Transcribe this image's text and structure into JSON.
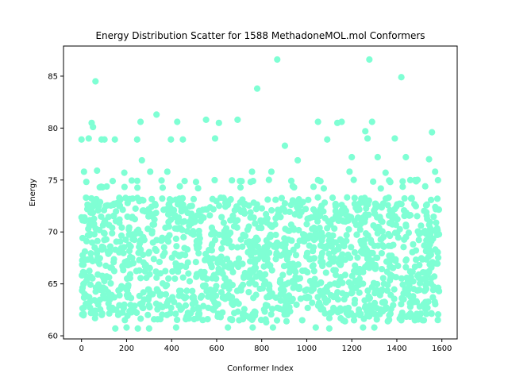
{
  "chart_data": {
    "type": "scatter",
    "title": "Energy Distribution Scatter for 1588 MethadoneMOL.mol Conformers",
    "xlabel": "Conformer Index",
    "ylabel": "Energy",
    "xlim": [
      -80,
      1668
    ],
    "ylim": [
      59.7,
      87.9
    ],
    "x_ticks": [
      0,
      200,
      400,
      600,
      800,
      1000,
      1200,
      1400,
      1600
    ],
    "x_tick_labels": [
      "0",
      "200",
      "400",
      "600",
      "800",
      "1000",
      "1200",
      "1400",
      "1600"
    ],
    "y_ticks": [
      60,
      65,
      70,
      75,
      80,
      85
    ],
    "y_tick_labels": [
      "60",
      "65",
      "70",
      "75",
      "80",
      "85"
    ],
    "grid": false,
    "marker_color": "#7fffd4",
    "n_points": 1588,
    "series": [
      {
        "x": [
          0,
          11,
          20,
          32,
          45,
          51,
          62,
          69,
          81,
          89,
          102,
          148,
          190,
          247,
          262,
          268,
          305,
          333,
          381,
          397,
          425,
          450,
          553,
          593,
          610,
          693,
          757,
          780,
          843,
          869,
          903,
          960,
          1050,
          1091,
          1136,
          1155,
          1190,
          1200,
          1260,
          1270,
          1278,
          1290,
          1315,
          1350,
          1391,
          1420,
          1440,
          1543,
          1556,
          1570
        ],
        "y": [
          78.9,
          75.8,
          73.3,
          79.0,
          80.5,
          80.1,
          84.5,
          75.9,
          74.3,
          78.9,
          78.9,
          78.9,
          75.7,
          78.9,
          80.6,
          76.9,
          75.8,
          81.3,
          75.8,
          78.9,
          80.6,
          78.9,
          80.8,
          79.0,
          80.5,
          80.8,
          75.8,
          83.8,
          75.8,
          86.6,
          78.3,
          76.9,
          80.6,
          78.9,
          80.5,
          80.6,
          75.8,
          77.2,
          79.7,
          79.0,
          86.6,
          80.6,
          77.2,
          75.7,
          79.0,
          84.9,
          77.2,
          77.0,
          79.6,
          75.8
        ]
      },
      {
        "x": [
          0,
          10,
          30,
          60,
          100,
          150,
          200,
          250,
          300,
          350,
          420,
          500,
          560,
          650,
          700,
          760,
          820,
          850,
          910,
          980,
          1040,
          1100,
          1170,
          1210,
          1250,
          1300,
          1360,
          1420,
          1480,
          1520,
          1560,
          1580
        ],
        "y": [
          71.4,
          62.1,
          70.3,
          61.7,
          72.1,
          60.7,
          60.8,
          60.7,
          60.7,
          61.6,
          60.8,
          61.6,
          61.6,
          60.8,
          61.5,
          60.8,
          61.3,
          60.8,
          61.4,
          61.5,
          60.8,
          60.7,
          61.4,
          61.5,
          60.8,
          60.8,
          61.4,
          61.5,
          61.5,
          61.5,
          63.7,
          73.2
        ]
      }
    ]
  }
}
